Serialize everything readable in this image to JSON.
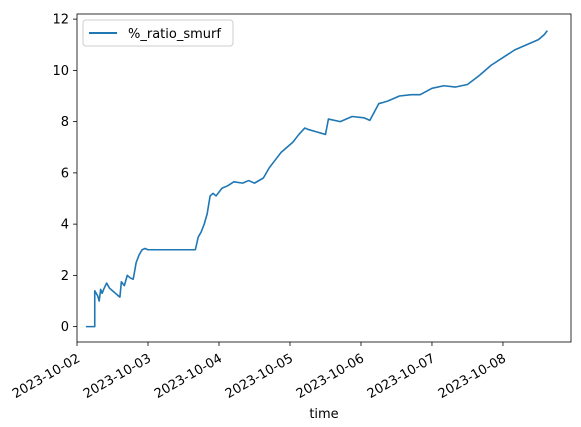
{
  "chart_data": {
    "type": "line",
    "title": "",
    "xlabel": "time",
    "ylabel": "",
    "x_tick_labels": [
      "2023-10-02",
      "2023-10-03",
      "2023-10-04",
      "2023-10-05",
      "2023-10-06",
      "2023-10-07",
      "2023-10-08"
    ],
    "x_range": [
      "2023-10-02T00:00",
      "2023-10-08T23:00"
    ],
    "y_ticks": [
      0,
      2,
      4,
      6,
      8,
      10,
      12
    ],
    "ylim": [
      -0.6,
      12.2
    ],
    "grid": false,
    "legend_position": "top-left",
    "series": [
      {
        "name": "%_ratio_smurf",
        "color": "#1f77b4",
        "x": [
          "2023-10-02T03:00",
          "2023-10-02T05:00",
          "2023-10-02T06:00",
          "2023-10-02T06:00",
          "2023-10-02T07:00",
          "2023-10-02T07:30",
          "2023-10-02T08:00",
          "2023-10-02T08:30",
          "2023-10-02T09:00",
          "2023-10-02T10:00",
          "2023-10-02T11:00",
          "2023-10-02T12:00",
          "2023-10-02T13:00",
          "2023-10-02T14:00",
          "2023-10-02T14:30",
          "2023-10-02T15:00",
          "2023-10-02T16:00",
          "2023-10-02T17:00",
          "2023-10-02T18:00",
          "2023-10-02T19:00",
          "2023-10-02T20:00",
          "2023-10-02T21:00",
          "2023-10-02T22:00",
          "2023-10-02T23:00",
          "2023-10-03T00:00",
          "2023-10-03T01:00",
          "2023-10-03T02:00",
          "2023-10-03T03:00",
          "2023-10-03T04:00",
          "2023-10-03T12:00",
          "2023-10-03T16:00",
          "2023-10-03T17:00",
          "2023-10-03T18:00",
          "2023-10-03T19:00",
          "2023-10-03T20:00",
          "2023-10-03T21:00",
          "2023-10-03T22:00",
          "2023-10-03T23:00",
          "2023-10-04T01:00",
          "2023-10-04T03:00",
          "2023-10-04T05:00",
          "2023-10-04T08:00",
          "2023-10-04T10:00",
          "2023-10-04T12:00",
          "2023-10-04T15:00",
          "2023-10-04T17:00",
          "2023-10-04T19:00",
          "2023-10-04T21:00",
          "2023-10-04T23:00",
          "2023-10-05T01:00",
          "2023-10-05T03:00",
          "2023-10-05T05:00",
          "2023-10-05T06:00",
          "2023-10-05T09:00",
          "2023-10-05T12:00",
          "2023-10-05T13:00",
          "2023-10-05T17:00",
          "2023-10-05T21:00",
          "2023-10-06T01:00",
          "2023-10-06T03:00",
          "2023-10-06T06:00",
          "2023-10-06T09:00",
          "2023-10-06T13:00",
          "2023-10-06T17:00",
          "2023-10-06T20:00",
          "2023-10-07T00:00",
          "2023-10-07T04:00",
          "2023-10-07T08:00",
          "2023-10-07T12:00",
          "2023-10-07T16:00",
          "2023-10-07T20:00",
          "2023-10-08T00:00",
          "2023-10-08T04:00",
          "2023-10-08T08:00",
          "2023-10-08T12:00",
          "2023-10-08T14:00",
          "2023-10-08T15:00"
        ],
        "y": [
          0.0,
          0.0,
          0.0,
          1.4,
          1.2,
          1.0,
          1.45,
          1.3,
          1.45,
          1.7,
          1.5,
          1.4,
          1.3,
          1.2,
          1.15,
          1.75,
          1.6,
          2.0,
          1.9,
          1.85,
          2.5,
          2.8,
          3.0,
          3.05,
          3.0,
          3.0,
          3.0,
          3.0,
          3.0,
          3.0,
          3.0,
          3.5,
          3.7,
          4.0,
          4.4,
          5.1,
          5.2,
          5.1,
          5.4,
          5.5,
          5.65,
          5.6,
          5.7,
          5.6,
          5.8,
          6.2,
          6.5,
          6.8,
          7.0,
          7.2,
          7.5,
          7.75,
          7.7,
          7.6,
          7.5,
          8.1,
          8.0,
          8.2,
          8.15,
          8.05,
          8.7,
          8.8,
          9.0,
          9.05,
          9.05,
          9.3,
          9.4,
          9.35,
          9.45,
          9.8,
          10.2,
          10.5,
          10.8,
          11.0,
          11.2,
          11.4,
          11.55
        ]
      }
    ]
  }
}
